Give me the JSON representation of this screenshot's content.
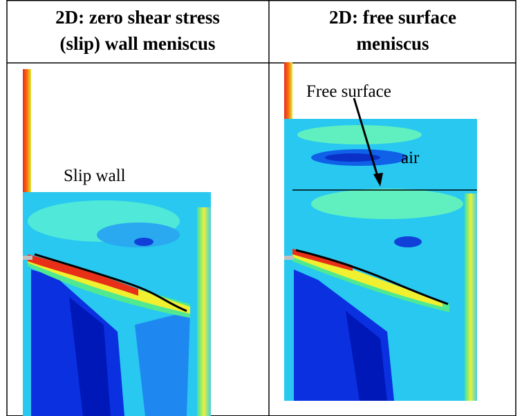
{
  "table": {
    "header": [
      {
        "lines": [
          "2D: zero shear stress",
          "(slip) wall meniscus"
        ]
      },
      {
        "lines": [
          "2D: free surface",
          "meniscus"
        ]
      }
    ],
    "cells": [
      {
        "labels": [
          "Slip wall"
        ]
      },
      {
        "labels": [
          "Free surface",
          "air"
        ]
      }
    ]
  }
}
